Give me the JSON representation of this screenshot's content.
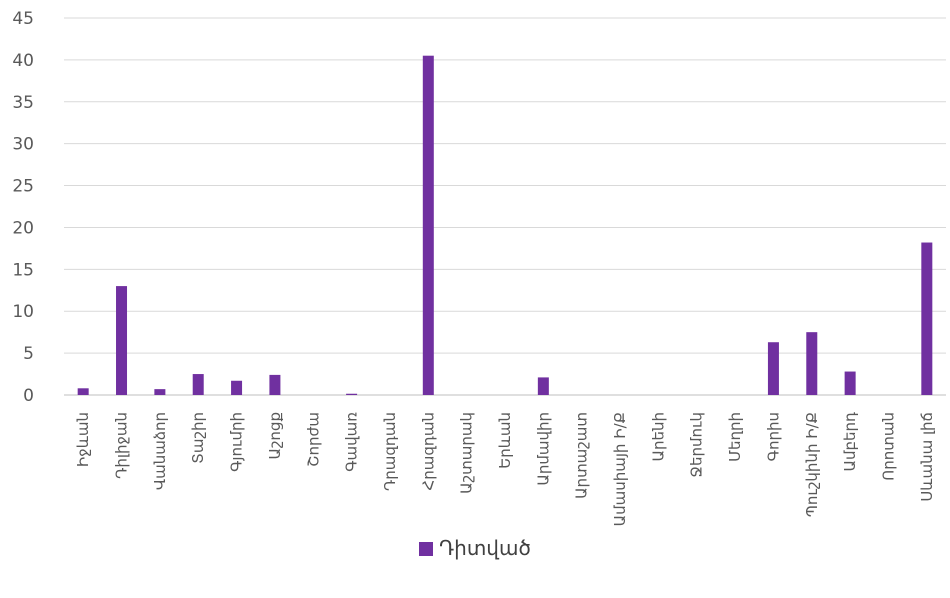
{
  "chart_data": {
    "type": "bar",
    "categories": [
      "Իջևան",
      "Դիլիջան",
      "Վանաձոր",
      "Տաշիր",
      "Գյումրի",
      "Աշոցք",
      "Շորժա",
      "Գավառ",
      "Դրազդան",
      "Հրազդան",
      "Աշտարակ",
      "Երևան",
      "Արմավիր",
      "Արտաշատ",
      "Ամասիայի Ի/Ք",
      "Արենի",
      "Ջերմուկ",
      "Մեղրի",
      "Գորիս",
      "Պուշկինի Ի/Ք",
      "Ամբերդ",
      "Որոտան",
      "Սևանա լիճ"
    ],
    "series": [
      {
        "name": "Դիտված",
        "color": "#7030a0",
        "values": [
          0.8,
          13.0,
          0.7,
          2.5,
          1.7,
          2.4,
          0.0,
          0.15,
          0.0,
          40.5,
          0.0,
          0.0,
          2.1,
          0.0,
          0.0,
          0.0,
          0.0,
          0.0,
          6.3,
          7.5,
          2.8,
          0.0,
          18.2
        ]
      }
    ],
    "ylim": [
      0,
      45
    ],
    "yticks": [
      0,
      5,
      10,
      15,
      20,
      25,
      30,
      35,
      40,
      45
    ],
    "grid": true,
    "legend_position": "bottom",
    "title": "",
    "xlabel": "",
    "ylabel": ""
  }
}
